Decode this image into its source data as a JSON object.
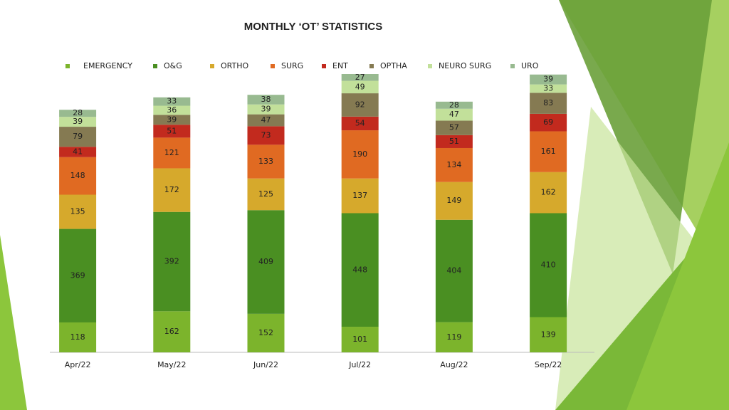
{
  "chart_data": {
    "type": "bar",
    "stacked": true,
    "title": "MONTHLY ‘OT’ STATISTICS",
    "categories": [
      "Apr/22",
      "May/22",
      "Jun/22",
      "Jul/22",
      "Aug/22",
      "Sep/22"
    ],
    "series": [
      {
        "name": "EMERGENCY",
        "color": "#7cb42c",
        "values": [
          118,
          162,
          152,
          101,
          119,
          139
        ]
      },
      {
        "name": "O&G",
        "color": "#4a8f22",
        "values": [
          369,
          392,
          409,
          448,
          404,
          410
        ]
      },
      {
        "name": "ORTHO",
        "color": "#d6a92c",
        "values": [
          135,
          172,
          125,
          137,
          149,
          162
        ]
      },
      {
        "name": "SURG",
        "color": "#e06a22",
        "values": [
          148,
          121,
          133,
          190,
          134,
          161
        ]
      },
      {
        "name": "ENT",
        "color": "#c22a1e",
        "values": [
          41,
          51,
          73,
          54,
          51,
          69
        ]
      },
      {
        "name": "OPTHA",
        "color": "#857a52",
        "values": [
          79,
          39,
          47,
          92,
          57,
          83
        ]
      },
      {
        "name": "NEURO SURG",
        "color": "#c2e09a",
        "values": [
          39,
          36,
          39,
          49,
          47,
          33
        ]
      },
      {
        "name": "URO",
        "color": "#98ba90",
        "values": [
          28,
          33,
          38,
          27,
          28,
          39
        ]
      }
    ]
  }
}
